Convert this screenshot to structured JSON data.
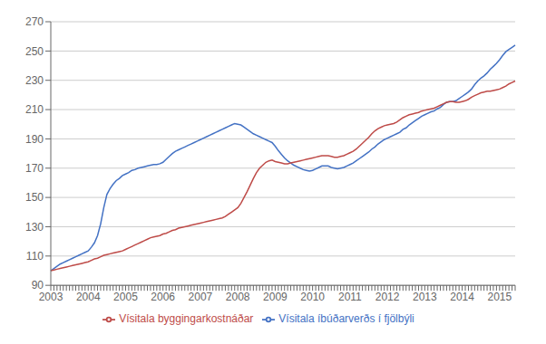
{
  "chart_data": {
    "type": "line",
    "categories": [
      "2003",
      null,
      null,
      null,
      null,
      null,
      null,
      null,
      null,
      null,
      null,
      null,
      "2004",
      null,
      null,
      null,
      null,
      null,
      null,
      null,
      null,
      null,
      null,
      null,
      "2005",
      null,
      null,
      null,
      null,
      null,
      null,
      null,
      null,
      null,
      null,
      null,
      "2006",
      null,
      null,
      null,
      null,
      null,
      null,
      null,
      null,
      null,
      null,
      null,
      "2007",
      null,
      null,
      null,
      null,
      null,
      null,
      null,
      null,
      null,
      null,
      null,
      "2008",
      null,
      null,
      null,
      null,
      null,
      null,
      null,
      null,
      null,
      null,
      null,
      "2009",
      null,
      null,
      null,
      null,
      null,
      null,
      null,
      null,
      null,
      null,
      null,
      "2010",
      null,
      null,
      null,
      null,
      null,
      null,
      null,
      null,
      null,
      null,
      null,
      "2011",
      null,
      null,
      null,
      null,
      null,
      null,
      null,
      null,
      null,
      null,
      null,
      "2012",
      null,
      null,
      null,
      null,
      null,
      null,
      null,
      null,
      null,
      null,
      null,
      "2013",
      null,
      null,
      null,
      null,
      null,
      null,
      null,
      null,
      null,
      null,
      null,
      "2014",
      null,
      null,
      null,
      null,
      null,
      null,
      null,
      null,
      null,
      null,
      null,
      "2015",
      null,
      null,
      null,
      null,
      null
    ],
    "series": [
      {
        "name": "Vísitala íbúðarverðs í fjölbýli",
        "color": "#4472C4",
        "values": [
          100.0,
          101.5,
          103.0,
          104.5,
          105.5,
          106.5,
          107.5,
          108.5,
          109.5,
          110.5,
          111.5,
          112.5,
          113.5,
          116.0,
          119.0,
          124.0,
          132.0,
          143.0,
          152.0,
          156.0,
          159.0,
          161.5,
          163.0,
          165.0,
          166.0,
          167.0,
          168.5,
          169.0,
          170.0,
          170.5,
          171.0,
          171.5,
          172.0,
          172.5,
          172.5,
          173.0,
          174.0,
          176.0,
          178.0,
          180.0,
          181.5,
          182.5,
          183.5,
          184.5,
          185.5,
          186.5,
          187.5,
          188.5,
          189.5,
          190.5,
          191.5,
          192.5,
          193.5,
          194.5,
          195.5,
          196.5,
          197.5,
          198.5,
          199.5,
          200.5,
          200.0,
          199.5,
          198.0,
          196.5,
          195.0,
          193.5,
          192.5,
          191.5,
          190.5,
          189.5,
          188.5,
          187.5,
          185.0,
          182.0,
          179.5,
          177.0,
          175.0,
          173.5,
          172.0,
          171.0,
          170.0,
          169.0,
          168.5,
          168.0,
          168.5,
          169.5,
          170.5,
          171.5,
          171.5,
          171.5,
          170.5,
          170.0,
          169.5,
          170.0,
          170.5,
          171.5,
          172.5,
          173.5,
          175.0,
          176.5,
          178.0,
          179.5,
          181.0,
          183.0,
          184.5,
          186.5,
          188.0,
          189.5,
          190.5,
          191.5,
          192.5,
          193.5,
          194.5,
          196.5,
          197.5,
          199.5,
          201.0,
          202.5,
          204.0,
          205.5,
          206.5,
          207.5,
          208.5,
          209.0,
          210.5,
          211.5,
          213.5,
          215.0,
          215.5,
          215.5,
          216.0,
          217.5,
          219.0,
          220.5,
          222.0,
          224.0,
          227.0,
          229.5,
          231.5,
          233.0,
          235.0,
          237.5,
          239.5,
          241.5,
          244.0,
          247.0,
          249.5,
          251.0,
          252.5,
          254.0
        ]
      },
      {
        "name": "Vísitala byggingarkostnáðar",
        "color": "#BE4B48",
        "values": [
          100.0,
          100.5,
          101.0,
          101.5,
          102.0,
          102.5,
          103.0,
          103.5,
          104.0,
          104.5,
          105.0,
          105.5,
          106.0,
          107.0,
          108.0,
          108.5,
          109.5,
          110.5,
          111.0,
          111.5,
          112.0,
          112.5,
          113.0,
          113.5,
          114.5,
          115.5,
          116.5,
          117.5,
          118.5,
          119.5,
          120.5,
          121.5,
          122.5,
          123.0,
          123.5,
          124.0,
          125.0,
          125.5,
          126.5,
          127.5,
          128.0,
          129.0,
          129.5,
          130.0,
          130.5,
          131.0,
          131.5,
          132.0,
          132.5,
          133.0,
          133.5,
          134.0,
          134.5,
          135.0,
          135.5,
          136.0,
          137.0,
          138.5,
          140.0,
          141.5,
          143.0,
          146.0,
          150.0,
          154.0,
          158.5,
          163.0,
          167.0,
          170.0,
          172.0,
          174.0,
          175.0,
          175.5,
          174.5,
          174.0,
          173.5,
          173.0,
          173.0,
          173.5,
          174.0,
          174.5,
          175.0,
          175.5,
          176.0,
          176.5,
          177.0,
          177.5,
          178.0,
          178.5,
          178.5,
          178.5,
          178.0,
          177.5,
          177.5,
          178.0,
          178.5,
          179.5,
          180.5,
          181.5,
          183.0,
          185.0,
          187.0,
          189.0,
          191.0,
          193.5,
          195.5,
          197.0,
          198.0,
          199.0,
          199.5,
          200.0,
          200.5,
          201.5,
          203.0,
          204.5,
          205.5,
          206.5,
          207.0,
          207.5,
          208.0,
          209.0,
          209.5,
          210.0,
          210.5,
          211.0,
          212.0,
          213.0,
          214.0,
          215.0,
          215.5,
          215.5,
          215.0,
          215.0,
          215.5,
          216.0,
          217.0,
          218.5,
          219.5,
          220.5,
          221.5,
          222.0,
          222.5,
          222.5,
          223.0,
          223.5,
          224.0,
          225.0,
          226.0,
          227.5,
          228.5,
          229.5
        ]
      }
    ],
    "ylim": [
      90,
      270
    ],
    "yticks": [
      90,
      110,
      130,
      150,
      170,
      190,
      210,
      230,
      250,
      270
    ],
    "grid": true,
    "legend": "bottom"
  }
}
